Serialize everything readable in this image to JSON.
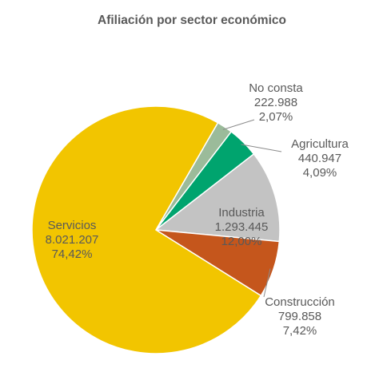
{
  "chart_data": {
    "type": "pie",
    "title": "Afiliación por sector económico",
    "start_angle_deg": 30,
    "direction": "clockwise",
    "slices": [
      {
        "name": "No consta",
        "value_text": "222.988",
        "percent_text": "2,07%",
        "value": 222988,
        "percent": 2.07,
        "color": "#9bbb9a"
      },
      {
        "name": "Agricultura",
        "value_text": "440.947",
        "percent_text": "4,09%",
        "value": 440947,
        "percent": 4.09,
        "color": "#00a46e"
      },
      {
        "name": "Industria",
        "value_text": "1.293.445",
        "percent_text": "12,00%",
        "value": 1293445,
        "percent": 12.0,
        "color": "#c3c3c3"
      },
      {
        "name": "Construcción",
        "value_text": "799.858",
        "percent_text": "7,42%",
        "value": 799858,
        "percent": 7.42,
        "color": "#c5561c"
      },
      {
        "name": "Servicios",
        "value_text": "8.021.207",
        "percent_text": "74,42%",
        "value": 8021207,
        "percent": 74.42,
        "color": "#f2c500"
      }
    ]
  }
}
